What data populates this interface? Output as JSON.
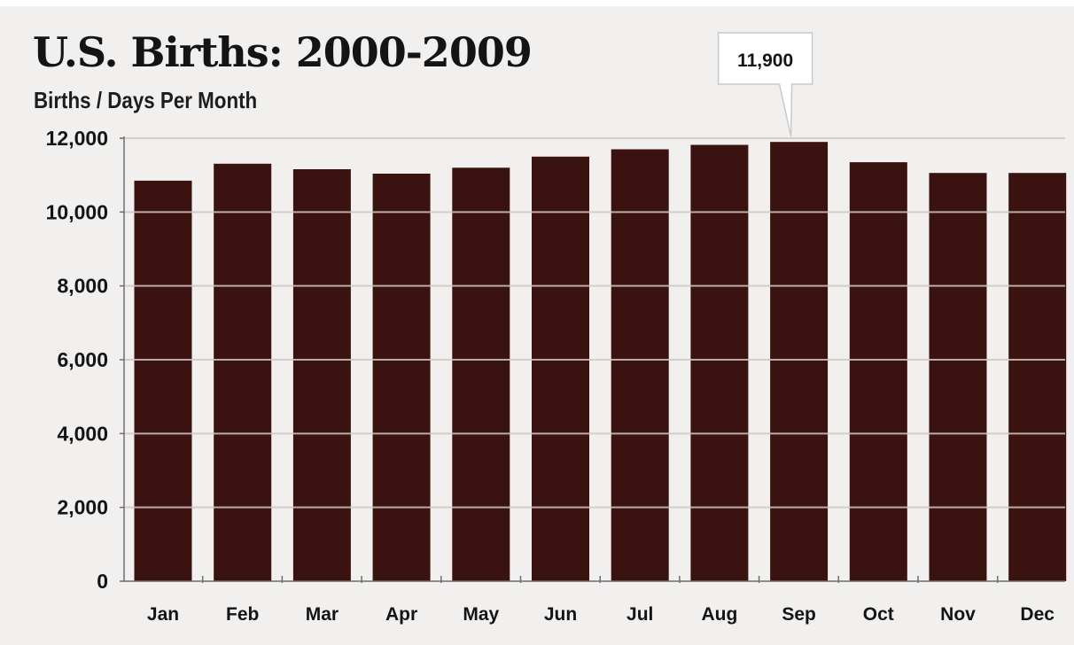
{
  "chart_data": {
    "type": "bar",
    "title": "U.S. Births: 2000-2009",
    "subtitle": "Births / Days Per Month",
    "xlabel": "",
    "ylabel": "",
    "categories": [
      "Jan",
      "Feb",
      "Mar",
      "Apr",
      "May",
      "Jun",
      "Jul",
      "Aug",
      "Sep",
      "Oct",
      "Nov",
      "Dec"
    ],
    "values": [
      10850,
      11310,
      11160,
      11040,
      11200,
      11500,
      11700,
      11820,
      11900,
      11350,
      11060,
      11060
    ],
    "ylim": [
      0,
      12000
    ],
    "yticks": [
      0,
      2000,
      4000,
      6000,
      8000,
      10000,
      12000
    ],
    "ytick_labels": [
      "0",
      "2,000",
      "4,000",
      "6,000",
      "8,000",
      "10,000",
      "12,000"
    ],
    "grid": true,
    "bar_color": "#3a1210",
    "background": "#f2f0ee",
    "annotation": {
      "category": "Sep",
      "text": "11,900"
    }
  }
}
